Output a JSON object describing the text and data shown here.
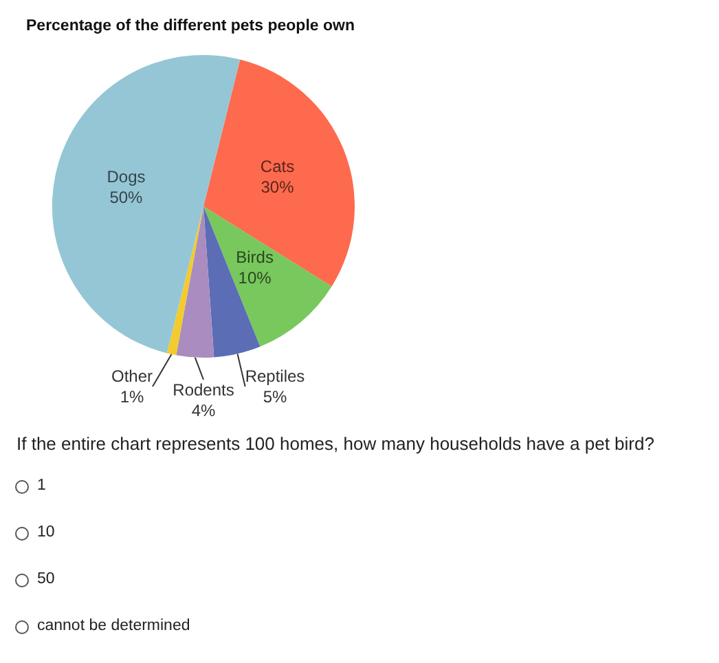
{
  "chart_data": {
    "type": "pie",
    "title": "Percentage of the different pets people own",
    "categories": [
      "Cats",
      "Birds",
      "Reptiles",
      "Rodents",
      "Other",
      "Dogs"
    ],
    "values": [
      30,
      10,
      5,
      4,
      1,
      50
    ],
    "colors": [
      "#fe6a4e",
      "#78c85d",
      "#5a6db5",
      "#aa8cc0",
      "#f2cb2c",
      "#95c6d5"
    ],
    "value_labels": [
      "30%",
      "10%",
      "5%",
      "4%",
      "1%",
      "50%"
    ],
    "annotations": [
      "If the entire chart represents 100 homes, how many households have a pet bird?",
      "1",
      "10",
      "50",
      "cannot be determined"
    ]
  }
}
